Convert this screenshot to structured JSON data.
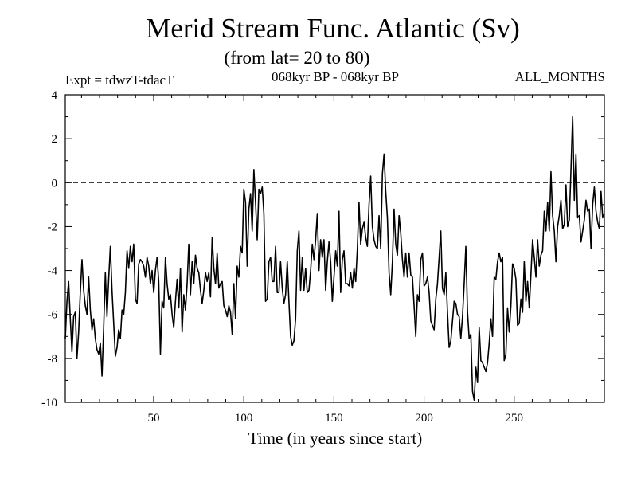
{
  "chart_data": {
    "type": "line",
    "title": "Merid Stream Func. Atlantic (Sv)",
    "subtitle": "(from lat= 20 to 80)",
    "experiment": "Expt = tdwzT-tdacT",
    "period": "068kyr BP - 068kyr BP",
    "months": "ALL_MONTHS",
    "xlabel": "Time (in years since start)",
    "ylabel": "",
    "xlim": [
      1,
      300
    ],
    "ylim": [
      -10,
      4
    ],
    "x_ticks": [
      50,
      100,
      150,
      200,
      250
    ],
    "y_ticks": [
      4,
      2,
      0,
      -2,
      -4,
      -6,
      -8,
      -10
    ],
    "zero_line": "dashed",
    "grid": false,
    "series": [
      {
        "values": [
          -7.1,
          -5.4,
          -4.5,
          -6.2,
          -7.7,
          -6.1,
          -5.9,
          -8.0,
          -6.8,
          -5.0,
          -3.5,
          -4.9,
          -5.6,
          -6.0,
          -4.3,
          -5.8,
          -6.7,
          -6.2,
          -7.1,
          -7.6,
          -7.8,
          -7.3,
          -8.8,
          -6.6,
          -4.1,
          -6.1,
          -4.4,
          -2.9,
          -4.9,
          -6.4,
          -7.9,
          -7.5,
          -6.7,
          -7.1,
          -5.8,
          -6.0,
          -5.0,
          -3.1,
          -3.9,
          -2.9,
          -3.6,
          -2.8,
          -5.3,
          -5.5,
          -3.7,
          -3.5,
          -3.6,
          -3.8,
          -4.3,
          -3.4,
          -3.8,
          -4.6,
          -4.0,
          -5.0,
          -4.0,
          -3.4,
          -4.5,
          -7.8,
          -5.4,
          -5.7,
          -3.4,
          -4.6,
          -5.3,
          -5.1,
          -6.0,
          -6.6,
          -5.4,
          -4.4,
          -5.7,
          -3.9,
          -6.8,
          -5.1,
          -5.8,
          -4.6,
          -2.8,
          -5.1,
          -3.6,
          -4.6,
          -3.3,
          -3.9,
          -4.1,
          -4.9,
          -5.5,
          -4.9,
          -4.1,
          -4.5,
          -4.1,
          -5.2,
          -2.5,
          -3.9,
          -4.6,
          -3.2,
          -4.8,
          -4.6,
          -4.5,
          -5.6,
          -5.8,
          -6.1,
          -5.6,
          -5.9,
          -6.9,
          -4.6,
          -6.2,
          -3.8,
          -4.3,
          -2.9,
          -3.2,
          -0.3,
          -0.9,
          -3.8,
          -1.2,
          -0.5,
          -2.2,
          0.6,
          -0.9,
          -2.6,
          -0.3,
          -0.5,
          -0.2,
          -1.4,
          -5.4,
          -5.3,
          -3.6,
          -3.4,
          -4.5,
          -4.5,
          -2.9,
          -5.0,
          -5.0,
          -3.6,
          -4.8,
          -5.5,
          -5.1,
          -3.6,
          -5.4,
          -7.0,
          -7.4,
          -7.2,
          -6.2,
          -3.1,
          -2.2,
          -4.9,
          -3.4,
          -4.9,
          -3.9,
          -5.0,
          -4.9,
          -4.0,
          -2.8,
          -3.5,
          -2.6,
          -1.4,
          -4.0,
          -2.6,
          -3.4,
          -2.6,
          -4.9,
          -3.6,
          -2.7,
          -3.6,
          -5.4,
          -4.3,
          -3.1,
          -3.8,
          -1.3,
          -5.0,
          -3.5,
          -3.1,
          -4.6,
          -4.6,
          -4.7,
          -4.1,
          -4.8,
          -3.9,
          -4.5,
          -3.0,
          -0.9,
          -2.8,
          -2.1,
          -1.8,
          -2.5,
          -2.9,
          -1.0,
          0.3,
          -2.0,
          -2.6,
          -2.9,
          -3.0,
          -1.5,
          -3.0,
          0.4,
          1.3,
          -0.4,
          -1.6,
          -4.1,
          -5.1,
          -3.6,
          -1.2,
          -2.8,
          -3.3,
          -1.5,
          -2.3,
          -3.5,
          -4.3,
          -3.2,
          -4.3,
          -3.2,
          -4.2,
          -4.3,
          -5.6,
          -7.0,
          -5.1,
          -5.4,
          -3.5,
          -3.2,
          -4.7,
          -4.6,
          -4.3,
          -5.0,
          -6.3,
          -6.5,
          -6.7,
          -5.3,
          -4.6,
          -3.4,
          -2.2,
          -4.8,
          -5.1,
          -4.1,
          -5.9,
          -7.5,
          -7.2,
          -6.3,
          -5.4,
          -5.5,
          -6.0,
          -6.1,
          -7.1,
          -6.1,
          -4.6,
          -2.9,
          -5.9,
          -7.1,
          -6.9,
          -9.5,
          -9.9,
          -8.4,
          -9.1,
          -6.6,
          -8.1,
          -8.2,
          -8.4,
          -8.6,
          -8.2,
          -7.3,
          -6.2,
          -7.0,
          -4.3,
          -4.4,
          -3.6,
          -3.2,
          -3.6,
          -3.4,
          -8.1,
          -7.8,
          -5.7,
          -6.8,
          -5.6,
          -3.7,
          -3.9,
          -4.4,
          -6.5,
          -6.4,
          -5.3,
          -5.9,
          -3.6,
          -5.4,
          -4.5,
          -5.7,
          -4.2,
          -2.6,
          -3.4,
          -4.3,
          -2.6,
          -3.8,
          -3.3,
          -3.1,
          -1.3,
          -2.2,
          -0.9,
          -2.2,
          0.5,
          -1.5,
          -2.2,
          -3.6,
          -2.0,
          -1.5,
          -0.8,
          -2.1,
          -1.9,
          -0.1,
          -2.0,
          -1.7,
          0.6,
          3.0,
          -0.8,
          1.3,
          -1.6,
          -1.5,
          -2.7,
          -2.2,
          -1.7,
          -0.8,
          -1.3,
          -1.2,
          -3.0,
          -1.0,
          -0.2,
          -1.3,
          -1.8,
          -2.1,
          -0.4,
          -1.6,
          -1.4
        ]
      }
    ]
  }
}
